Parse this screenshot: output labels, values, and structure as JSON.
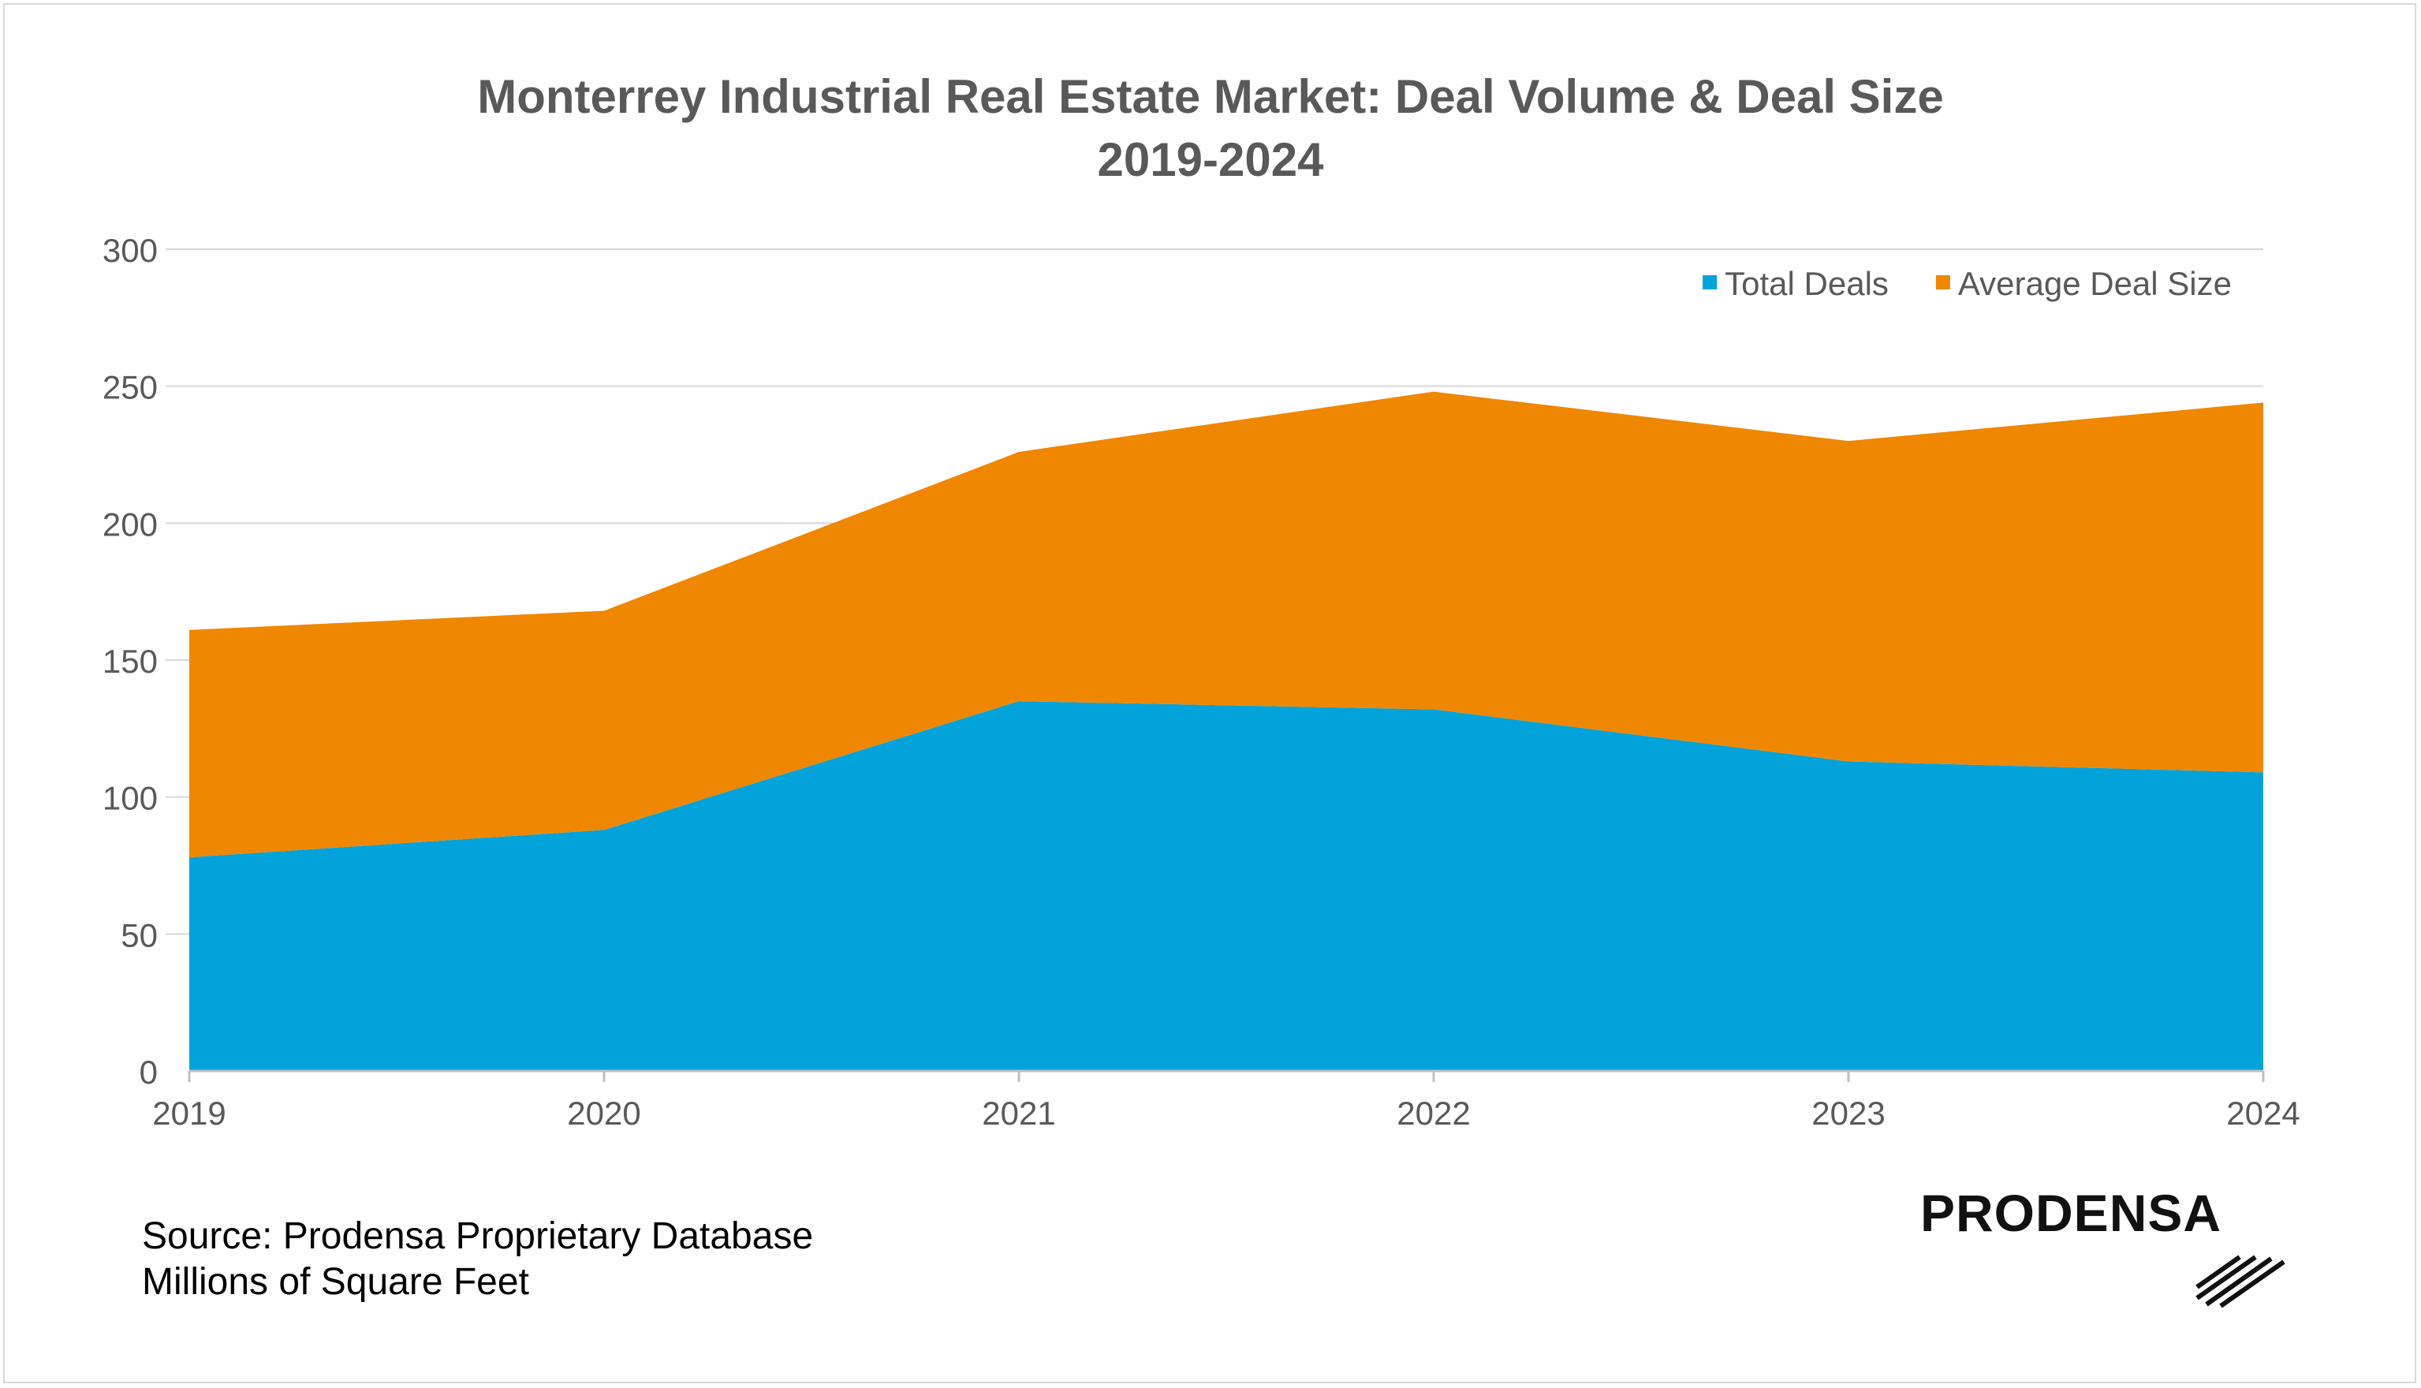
{
  "chart_data": {
    "type": "area",
    "stacked": true,
    "title": "Monterrey Industrial Real Estate Market: Deal Volume & Deal Size",
    "subtitle": "2019-2024",
    "x": [
      "2019",
      "2020",
      "2021",
      "2022",
      "2023",
      "2024"
    ],
    "series": [
      {
        "name": "Total Deals",
        "color": "#02a3da",
        "values": [
          78,
          88,
          135,
          132,
          113,
          109
        ]
      },
      {
        "name": "Average Deal Size",
        "color": "#ef8700",
        "values": [
          83,
          80,
          91,
          116,
          117,
          135
        ]
      }
    ],
    "ylim": [
      0,
      300
    ],
    "yticks": [
      0,
      50,
      100,
      150,
      200,
      250,
      300
    ],
    "grid": true,
    "legend_position": "top-right",
    "xlabel": "",
    "ylabel": ""
  },
  "footer": {
    "source": "Source: Prodensa Proprietary Database",
    "units": "Millions of Square Feet"
  },
  "logo": {
    "text": "PRODENSA"
  }
}
